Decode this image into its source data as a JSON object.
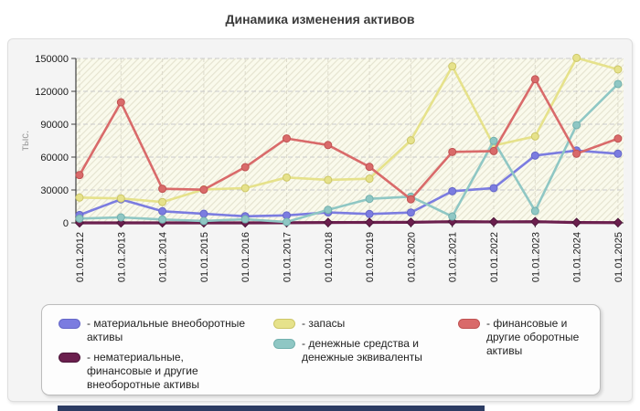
{
  "page": {
    "title": "Динамика изменения активов"
  },
  "chart_data": {
    "type": "line",
    "title": "Динамика изменения активов",
    "xlabel": "",
    "ylabel": "тыс.",
    "ylim": [
      0,
      150000
    ],
    "yticks": [
      0,
      30000,
      60000,
      90000,
      120000,
      150000
    ],
    "ytick_labels": [
      "0",
      "30000",
      "60000",
      "90000",
      "120000",
      "150000"
    ],
    "grid": true,
    "legend_position": "bottom",
    "plot_background": "#fafaec",
    "categories": [
      "01.01.2012",
      "01.01.2013",
      "01.01.2014",
      "01.01.2015",
      "01.01.2016",
      "01.01.2017",
      "01.01.2018",
      "01.01.2019",
      "01.01.2020",
      "01.01.2021",
      "01.01.2022",
      "01.01.2023",
      "01.01.2024",
      "01.01.2025"
    ],
    "legend_columns": [
      [
        0,
        1
      ],
      [
        2,
        3
      ],
      [
        4
      ]
    ],
    "series": [
      {
        "name": "материальные внеоборотные активы",
        "legend_label": "- материальные внеоборотные активы",
        "color": "#7b7ce0",
        "edge": "#6567c8",
        "marker": "circle",
        "values": [
          7200,
          21500,
          10600,
          8300,
          6000,
          6800,
          9500,
          8100,
          9400,
          28900,
          31700,
          61400,
          66000,
          63100
        ]
      },
      {
        "name": "нематериальные, финансовые и другие внеоборотные активы",
        "legend_label": "- нематериальные, финансовые и другие внеоборотные активы",
        "color": "#6b1f4e",
        "edge": "#4d163a",
        "marker": "diamond",
        "values": [
          0,
          0,
          0,
          0,
          0,
          100,
          300,
          400,
          500,
          1100,
          900,
          1100,
          300,
          200
        ]
      },
      {
        "name": "запасы",
        "legend_label": "- запасы",
        "color": "#e6e28b",
        "edge": "#cdc768",
        "marker": "circle",
        "values": [
          23100,
          22300,
          19000,
          30500,
          31700,
          41400,
          39200,
          40300,
          75300,
          142800,
          70500,
          78900,
          150500,
          140000
        ]
      },
      {
        "name": "денежные средства и денежные эквиваленты",
        "legend_label": "- денежные средства и денежные эквиваленты",
        "color": "#8fc7c4",
        "edge": "#72b0ad",
        "marker": "circle",
        "values": [
          3900,
          5000,
          3100,
          1700,
          3300,
          800,
          11900,
          21900,
          23900,
          5800,
          74800,
          10800,
          89200,
          126700
        ]
      },
      {
        "name": "финансовые и другие оборотные активы",
        "legend_label": "- финансовые и другие оборотные активы",
        "color": "#d96a6a",
        "edge": "#c05353",
        "marker": "circle",
        "values": [
          43600,
          110000,
          31100,
          30300,
          50800,
          77000,
          71000,
          51100,
          21500,
          64700,
          65500,
          131000,
          63100,
          76900
        ]
      }
    ]
  }
}
